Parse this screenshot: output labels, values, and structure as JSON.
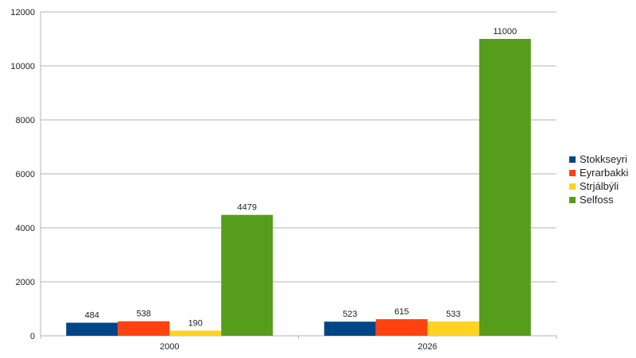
{
  "chart_data": {
    "type": "bar",
    "title": "",
    "xlabel": "",
    "ylabel": "",
    "categories": [
      "2000",
      "2026"
    ],
    "series": [
      {
        "name": "Stokkseyri",
        "values": [
          484,
          523
        ],
        "color": "#004586"
      },
      {
        "name": "Eyrarbakki",
        "values": [
          538,
          615
        ],
        "color": "#ff420e"
      },
      {
        "name": "Strjálbýli",
        "values": [
          190,
          533
        ],
        "color": "#ffd320"
      },
      {
        "name": "Selfoss",
        "values": [
          4479,
          11000
        ],
        "color": "#579d1c"
      }
    ],
    "ylim": [
      0,
      12000
    ],
    "yticks": [
      0,
      2000,
      4000,
      6000,
      8000,
      10000,
      12000
    ],
    "grid": true,
    "legend_position": "right",
    "data_labels": true
  }
}
